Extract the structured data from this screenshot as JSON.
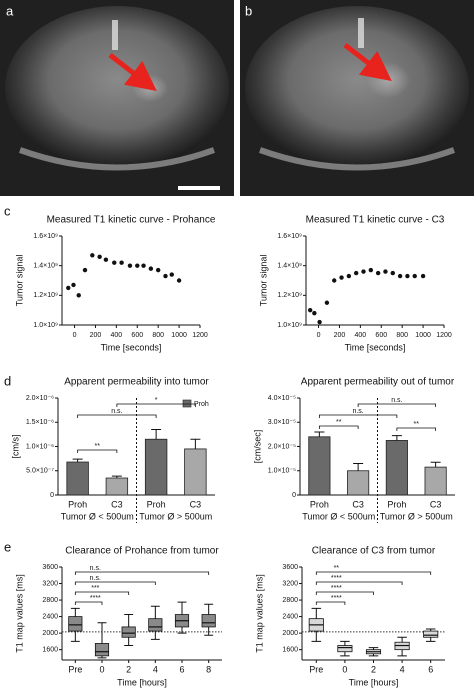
{
  "panel_labels": [
    "a",
    "b",
    "c",
    "d",
    "e"
  ],
  "chart_data": [
    {
      "type": "scatter",
      "title": "Measured T1 kinetic curve - Prohance",
      "x_label": "Time [seconds]",
      "y_label": "Tumor signal",
      "color": "#111111",
      "x": [
        -60,
        -10,
        40,
        100,
        170,
        240,
        300,
        380,
        450,
        530,
        600,
        660,
        730,
        800,
        870,
        930,
        1000
      ],
      "values": [
        1250000000,
        1270000000,
        1200000000,
        1370000000,
        1470000000,
        1460000000,
        1440000000,
        1420000000,
        1420000000,
        1400000000,
        1400000000,
        1400000000,
        1380000000,
        1370000000,
        1330000000,
        1340000000,
        1300000000
      ],
      "xlim": [
        -120,
        1200
      ],
      "xticks": [
        0,
        200,
        400,
        600,
        800,
        1000,
        1200
      ],
      "ylim": [
        1000000000,
        1600000000
      ],
      "yticks": [
        {
          "value": 1000000000,
          "label": "1.0×10⁹"
        },
        {
          "value": 1200000000,
          "label": "1.2×10⁹"
        },
        {
          "value": 1400000000,
          "label": "1.4×10⁹"
        },
        {
          "value": 1600000000,
          "label": "1.6×10⁹"
        }
      ]
    },
    {
      "type": "scatter",
      "title": "Measured T1 kinetic curve - C3",
      "x_label": "Time [seconds]",
      "y_label": "Tumor signal",
      "color": "#111111",
      "x": [
        -80,
        -40,
        10,
        80,
        150,
        220,
        290,
        360,
        430,
        500,
        570,
        640,
        710,
        780,
        850,
        920,
        1000
      ],
      "values": [
        1100000000,
        1080000000,
        1020000000,
        1150000000,
        1300000000,
        1320000000,
        1330000000,
        1350000000,
        1360000000,
        1370000000,
        1350000000,
        1360000000,
        1350000000,
        1330000000,
        1330000000,
        1330000000,
        1330000000
      ],
      "xlim": [
        -120,
        1200
      ],
      "xticks": [
        0,
        200,
        400,
        600,
        800,
        1000,
        1200
      ],
      "ylim": [
        1000000000,
        1600000000
      ],
      "yticks": [
        {
          "value": 1000000000,
          "label": "1.0×10⁹"
        },
        {
          "value": 1200000000,
          "label": "1.2×10⁹"
        },
        {
          "value": 1400000000,
          "label": "1.4×10⁹"
        },
        {
          "value": 1600000000,
          "label": "1.6×10⁹"
        }
      ]
    },
    {
      "type": "bar",
      "title": "Apparent permeability into tumor",
      "y_label": "[cm/s]",
      "categories": [
        "Proh",
        "C3",
        "Proh",
        "C3"
      ],
      "groups": [
        "Tumor Ø < 500um",
        "Tumor Ø > 500um"
      ],
      "series": [
        {
          "name": "Proh",
          "values": [
            6.8e-07,
            3.5e-07,
            1.15e-06,
            9.5e-07
          ],
          "errors": [
            6e-08,
            4e-08,
            2e-07,
            2e-07
          ]
        }
      ],
      "bar_colors": [
        "#6a6a6a",
        "#a8a8a8",
        "#6a6a6a",
        "#a8a8a8"
      ],
      "ylim": [
        0,
        2e-06
      ],
      "yticks": [
        0,
        {
          "value": 5e-07,
          "label": "5.0×10⁻⁷"
        },
        {
          "value": 1e-06,
          "label": "1.0×10⁻⁶"
        },
        {
          "value": 1.5e-06,
          "label": "1.5×10⁻⁶"
        },
        {
          "value": 2e-06,
          "label": "2.0×10⁻⁶"
        }
      ],
      "annotations": [
        "*",
        "n.s.",
        "**"
      ]
    },
    {
      "type": "bar",
      "title": "Apparent permeability out of tumor",
      "y_label": "[cm/sec]",
      "categories": [
        "Proh",
        "C3",
        "Proh",
        "C3"
      ],
      "groups": [
        "Tumor Ø < 500um",
        "Tumor Ø > 500um"
      ],
      "series": [
        {
          "values": [
            2.4e-05,
            1e-05,
            2.25e-05,
            1.15e-05
          ],
          "errors": [
            2e-06,
            3e-06,
            2e-06,
            2e-06
          ]
        }
      ],
      "bar_colors": [
        "#6a6a6a",
        "#a8a8a8",
        "#6a6a6a",
        "#a8a8a8"
      ],
      "ylim": [
        0,
        4e-05
      ],
      "yticks": [
        0,
        {
          "value": 1e-05,
          "label": "1.0×10⁻⁵"
        },
        {
          "value": 2e-05,
          "label": "2.0×10⁻⁵"
        },
        {
          "value": 3e-05,
          "label": "3.0×10⁻⁵"
        },
        {
          "value": 4e-05,
          "label": "4.0×10⁻⁵"
        }
      ],
      "annotations": [
        "n.s.",
        "n.s.",
        "**",
        "**"
      ]
    },
    {
      "type": "box",
      "title": "Clearance of Prohance from tumor",
      "x_label": "Time [hours]",
      "y_label": "T1 map values [ms]",
      "categories": [
        "Pre",
        "0",
        "2",
        "4",
        "6",
        "8"
      ],
      "box_color": "#8a8a8a",
      "min": [
        1800,
        1400,
        1700,
        1850,
        2000,
        1950
      ],
      "q1": [
        2050,
        1450,
        1900,
        2050,
        2150,
        2150
      ],
      "median": [
        2200,
        1550,
        2000,
        2150,
        2300,
        2250
      ],
      "q3": [
        2400,
        1750,
        2150,
        2350,
        2450,
        2450
      ],
      "max": [
        2600,
        2250,
        2450,
        2650,
        2750,
        2700
      ],
      "ref_line": 2030,
      "ylim": [
        1350,
        3600
      ],
      "yticks": [
        1600,
        2000,
        2400,
        2800,
        3200,
        3600
      ],
      "annotations": [
        "n.s.",
        "n.s.",
        "***",
        "****"
      ]
    },
    {
      "type": "box",
      "title": "Clearance of C3 from tumor",
      "x_label": "Time [hours]",
      "y_label": "T1 map values [ms]",
      "categories": [
        "Pre",
        "0",
        "2",
        "4",
        "6"
      ],
      "box_color": "#d8d8d8",
      "min": [
        1800,
        1450,
        1450,
        1450,
        1800
      ],
      "q1": [
        2050,
        1550,
        1500,
        1600,
        1900
      ],
      "median": [
        2200,
        1650,
        1550,
        1700,
        1950
      ],
      "q3": [
        2350,
        1700,
        1600,
        1780,
        2050
      ],
      "max": [
        2600,
        1800,
        1650,
        1900,
        2100
      ],
      "ref_line": 2030,
      "ylim": [
        1350,
        3600
      ],
      "yticks": [
        1600,
        2000,
        2400,
        2800,
        3200,
        3600
      ],
      "annotations": [
        "**",
        "****",
        "****",
        "****"
      ]
    }
  ]
}
